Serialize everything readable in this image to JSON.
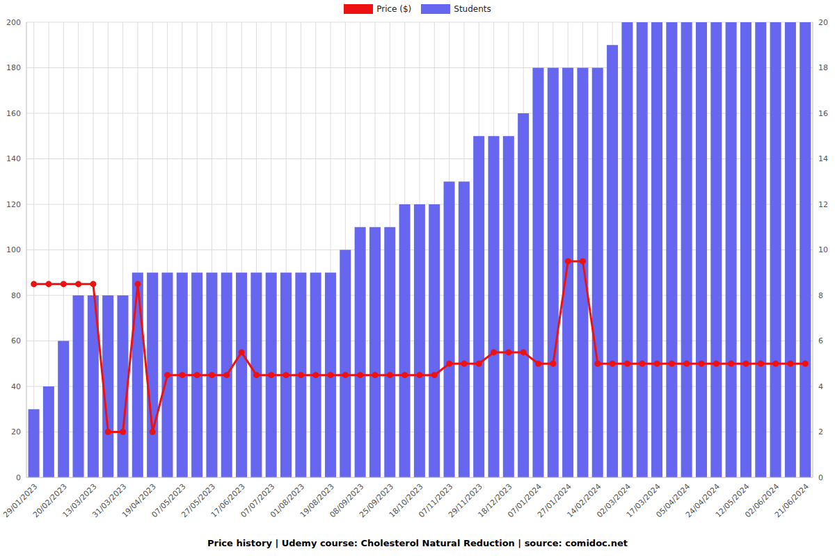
{
  "chart_data": {
    "type": "bar",
    "title": "Price history | Udemy course: Cholesterol Natural Reduction | source: comidoc.net",
    "categories": [
      "29/01/2023",
      null,
      "20/02/2023",
      null,
      "13/03/2023",
      null,
      "31/03/2023",
      null,
      "19/04/2023",
      null,
      "07/05/2023",
      null,
      "27/05/2023",
      null,
      "17/06/2023",
      null,
      "07/07/2023",
      null,
      "01/08/2023",
      null,
      "19/08/2023",
      null,
      "08/09/2023",
      null,
      "25/09/2023",
      null,
      "18/10/2023",
      null,
      "07/11/2023",
      null,
      "29/11/2023",
      null,
      "18/12/2023",
      null,
      "07/01/2024",
      null,
      "27/01/2024",
      null,
      "14/02/2024",
      null,
      "02/03/2024",
      null,
      "17/03/2024",
      null,
      "05/04/2024",
      null,
      "24/04/2024",
      null,
      "12/05/2024",
      null,
      "02/06/2024",
      null,
      "21/06/2024"
    ],
    "series": [
      {
        "name": "Price ($)",
        "type": "line",
        "color": "#ee1111",
        "marker": "circle",
        "axis": "y",
        "values": [
          85,
          85,
          85,
          85,
          85,
          20,
          20,
          85,
          20,
          45,
          45,
          45,
          45,
          45,
          55,
          45,
          45,
          45,
          45,
          45,
          45,
          45,
          45,
          45,
          45,
          45,
          45,
          45,
          50,
          50,
          50,
          55,
          55,
          55,
          50,
          50,
          95,
          95,
          50,
          50,
          50,
          50,
          50,
          50,
          50,
          50,
          50,
          50,
          50,
          50,
          50,
          50,
          50
        ]
      },
      {
        "name": "Students",
        "type": "bar",
        "color": "#6666ee",
        "axis": "y2",
        "values": [
          3,
          4,
          6,
          8,
          8,
          8,
          8,
          9,
          9,
          9,
          9,
          9,
          9,
          9,
          9,
          9,
          9,
          9,
          9,
          9,
          9,
          10,
          11,
          11,
          11,
          12,
          12,
          12,
          13,
          13,
          15,
          15,
          15,
          16,
          18,
          18,
          18,
          18,
          18,
          19,
          20,
          20,
          20,
          20,
          20,
          20,
          20,
          20,
          20,
          20,
          20,
          20,
          20
        ]
      }
    ],
    "ylim": [
      0,
      200
    ],
    "yticks": [
      0,
      20,
      40,
      60,
      80,
      100,
      120,
      140,
      160,
      180,
      200
    ],
    "y2lim": [
      0,
      20
    ],
    "y2ticks": [
      0,
      2,
      4,
      6,
      8,
      10,
      12,
      14,
      16,
      18,
      20
    ],
    "grid": true,
    "legend": "top"
  }
}
